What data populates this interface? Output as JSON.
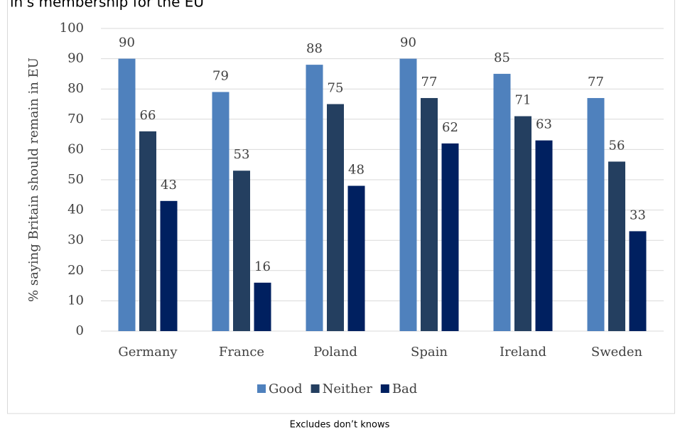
{
  "chart_data": {
    "type": "bar",
    "title": "in's membership for the EU",
    "y_label": "% saying Britain should remain in EU",
    "footnote": "Excludes don’t knows",
    "categories": [
      "Germany",
      "France",
      "Poland",
      "Spain",
      "Ireland",
      "Sweden"
    ],
    "series": [
      {
        "name": "Good",
        "color": "#4f81bd",
        "values": [
          90,
          79,
          88,
          90,
          85,
          77
        ]
      },
      {
        "name": "Neither",
        "color": "#243f60",
        "values": [
          66,
          53,
          75,
          77,
          71,
          56
        ]
      },
      {
        "name": "Bad",
        "color": "#002060",
        "values": [
          43,
          16,
          48,
          62,
          63,
          33
        ]
      }
    ],
    "ylim": [
      0,
      100
    ],
    "yticks": [
      0,
      10,
      20,
      30,
      40,
      50,
      60,
      70,
      80,
      90,
      100
    ],
    "grid": true,
    "legend": "bottom"
  }
}
